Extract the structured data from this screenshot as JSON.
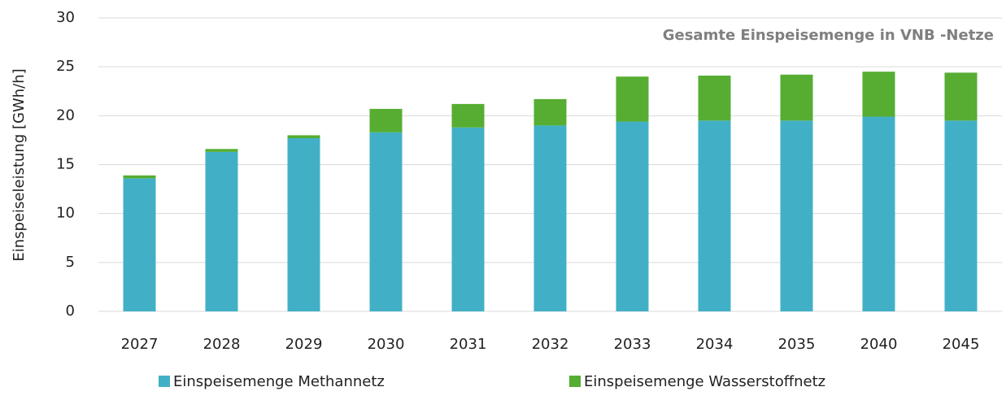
{
  "chart_data": {
    "type": "stacked_bar",
    "title": "Gesamte Einspeisemenge in VNB -Netze",
    "y_label": "Einspeiseleistung [GWh/h]",
    "categories": [
      "2027",
      "2028",
      "2029",
      "2030",
      "2031",
      "2032",
      "2033",
      "2034",
      "2035",
      "2040",
      "2045"
    ],
    "series": [
      {
        "name": "Einspeisemenge Methannetz",
        "color": "#41b0c6",
        "values": [
          13.6,
          16.3,
          17.7,
          18.3,
          18.8,
          19.0,
          19.4,
          19.5,
          19.5,
          19.9,
          19.5
        ]
      },
      {
        "name": "Einspeisemenge Wasserstoffnetz",
        "color": "#56ad32",
        "values": [
          0.3,
          0.3,
          0.3,
          2.4,
          2.4,
          2.7,
          4.6,
          4.6,
          4.7,
          4.6,
          4.9
        ]
      }
    ],
    "ylim": [
      0,
      30
    ],
    "yticks": [
      0,
      5,
      10,
      15,
      20,
      25,
      30
    ],
    "grid": true,
    "legend": "bottom"
  }
}
